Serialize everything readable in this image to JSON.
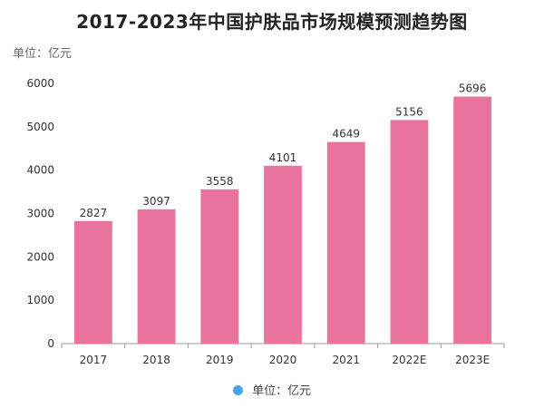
{
  "title": "2017-2023年中国护肤品市场规模预测趋势图",
  "unit_label": "单位：亿元",
  "legend_label": "单位：亿元",
  "colors": {
    "bar": "#e8749d",
    "legend_dot": "#4aa3e8",
    "axis": "#999999",
    "text": "#333333"
  },
  "chart_data": {
    "type": "bar",
    "title": "2017-2023年中国护肤品市场规模预测趋势图",
    "categories": [
      "2017",
      "2018",
      "2019",
      "2020",
      "2021",
      "2022E",
      "2023E"
    ],
    "values": [
      2827,
      3097,
      3558,
      4101,
      4649,
      5156,
      5696
    ],
    "ylim": [
      0,
      6000
    ],
    "yticks": [
      0,
      1000,
      2000,
      3000,
      4000,
      5000,
      6000
    ],
    "xlabel": "",
    "ylabel": "",
    "grid": false,
    "legend_position": "bottom"
  }
}
